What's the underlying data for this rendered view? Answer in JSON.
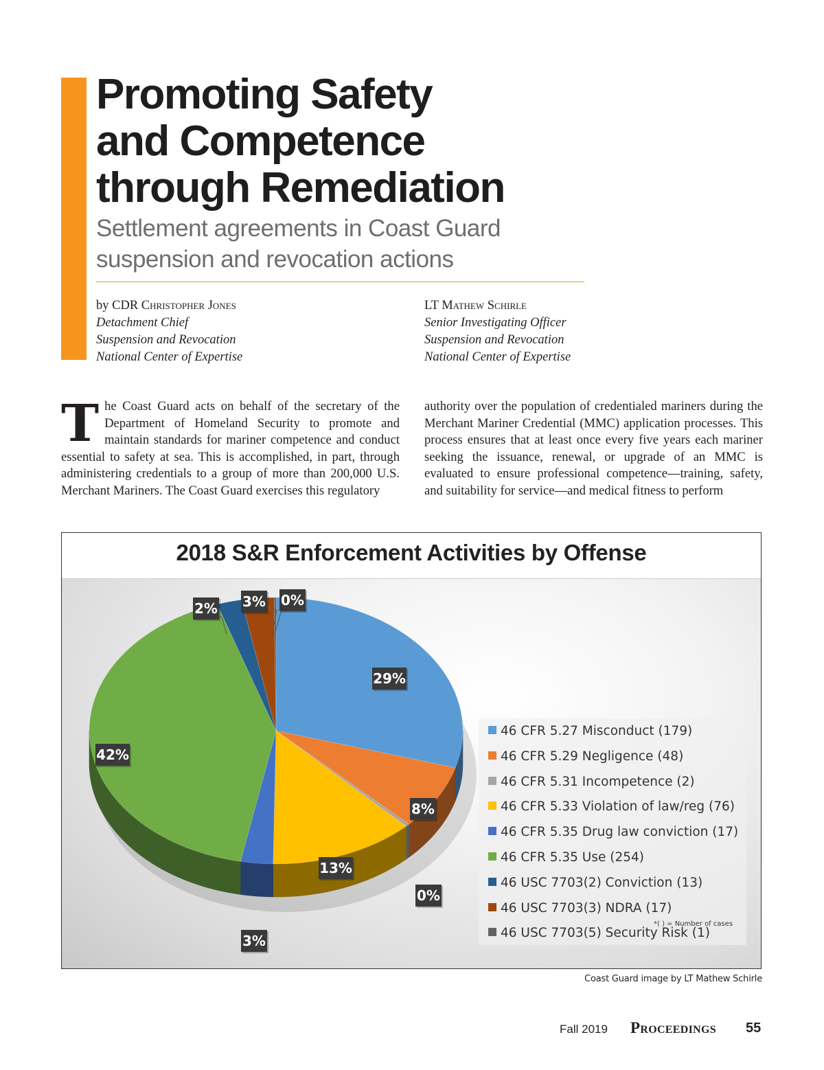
{
  "article": {
    "title_lines": [
      "Promoting Safety",
      "and Competence",
      "through Remediation"
    ],
    "subtitle_lines": [
      "Settlement agreements in Coast Guard",
      "suspension and revocation actions"
    ],
    "accent_color": "#f7941d",
    "authors": [
      {
        "prefix": "by CDR ",
        "name": "Christopher Jones",
        "roles": [
          "Detachment Chief",
          "Suspension and Revocation",
          "National Center of Expertise"
        ]
      },
      {
        "prefix": "LT ",
        "name": "Mathew Schirle",
        "roles": [
          "Senior Investigating Officer",
          "Suspension and Revocation",
          "National Center of Expertise"
        ]
      }
    ],
    "body": {
      "dropcap": "T",
      "left_column": "he Coast Guard acts on behalf of the secretary of the Department of Homeland Security to promote and maintain standards for mariner competence and conduct essential to safety at sea. This is accomplished, in part, through administering credentials to a group of more than 200,000 U.S. Merchant Mariners. The Coast Guard exercises this regulatory",
      "right_column": "authority over the population of credentialed mariners during the Merchant Mariner Credential (MMC) application processes. This process ensures that at least once every five years each mariner seeking the issuance, renewal, or upgrade of an MMC is evaluated to ensure professional competence—training, safety, and suitability for service—and medical fitness to perform"
    }
  },
  "chart_data": {
    "type": "pie",
    "title": "2018 S&R Enforcement Activities by Offense",
    "start_angle": "12 o'clock",
    "direction": "clockwise",
    "style": "3d",
    "legend_position": "right",
    "legend_note": "*( ) = Number of cases",
    "slices": [
      {
        "label": "46 CFR 5.27 Misconduct",
        "count": 179,
        "percent_label": "29%",
        "color": "#5b9bd5"
      },
      {
        "label": "46 CFR 5.29 Negligence",
        "count": 48,
        "percent_label": "8%",
        "color": "#ed7d31"
      },
      {
        "label": "46 CFR 5.31 Incompetence",
        "count": 2,
        "percent_label": "0%",
        "color": "#a5a5a5"
      },
      {
        "label": "46 CFR 5.33 Violation of law/reg",
        "count": 76,
        "percent_label": "13%",
        "color": "#ffc000"
      },
      {
        "label": "46 CFR 5.35 Drug law conviction",
        "count": 17,
        "percent_label": "3%",
        "color": "#4472c4"
      },
      {
        "label": "46 CFR 5.35 Use",
        "count": 254,
        "percent_label": "42%",
        "color": "#70ad47"
      },
      {
        "label": "46 USC 7703(2) Conviction",
        "count": 13,
        "percent_label": "2%",
        "color": "#255e91"
      },
      {
        "label": "46 USC 7703(3) NDRA",
        "count": 17,
        "percent_label": "3%",
        "color": "#9e480e"
      },
      {
        "label": "46 USC 7703(5) Security Risk",
        "count": 1,
        "percent_label": "0%",
        "color": "#636363"
      }
    ]
  },
  "figure": {
    "caption": "Coast Guard image by LT Mathew Schirle"
  },
  "footer": {
    "issue": "Fall 2019",
    "magazine": "Proceedings",
    "page_number": "55"
  }
}
